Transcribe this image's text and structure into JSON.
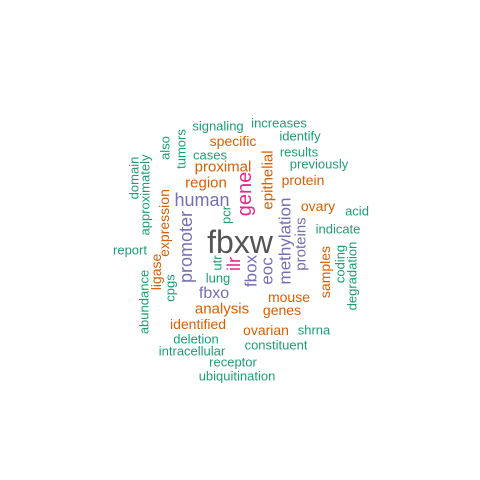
{
  "colors": {
    "green": "#1b9e77",
    "orange": "#d95f02",
    "purple": "#7570b3",
    "magenta": "#e7298a",
    "gray": "#555555"
  },
  "words": [
    "fbxw",
    "gene",
    "human",
    "promoter",
    "ilr",
    "fbxo",
    "fbox",
    "eoc",
    "methylation",
    "proteins",
    "epithelial",
    "region",
    "proximal",
    "analysis",
    "expression",
    "mouse",
    "identified",
    "ovarian",
    "samples",
    "specific",
    "protein",
    "ovary",
    "genes",
    "ligase",
    "signaling",
    "increases",
    "identify",
    "results",
    "previously",
    "cases",
    "tumors",
    "also",
    "domain",
    "approximately",
    "acid",
    "indicate",
    "report",
    "abundance",
    "cpgs",
    "lung",
    "utr",
    "pcr",
    "coding",
    "degradation",
    "shrna",
    "constituent",
    "deletion",
    "intracellular",
    "receptor",
    "ubiquitination"
  ]
}
